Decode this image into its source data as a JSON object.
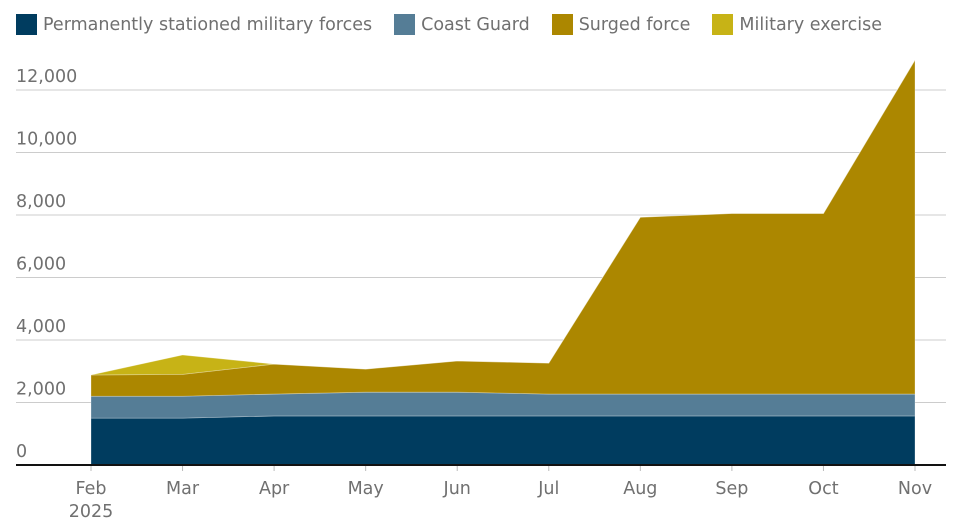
{
  "chart_data": {
    "type": "area",
    "stacked": true,
    "title": "",
    "xlabel": "",
    "ylabel": "",
    "categories": [
      "Feb",
      "Mar",
      "Apr",
      "May",
      "Jun",
      "Jul",
      "Aug",
      "Sep",
      "Oct",
      "Nov"
    ],
    "x_tick_labels": [
      [
        "Feb",
        "2025"
      ],
      [
        "Mar"
      ],
      [
        "Apr"
      ],
      [
        "May"
      ],
      [
        "Jun"
      ],
      [
        "Jul"
      ],
      [
        "Aug"
      ],
      [
        "Sep"
      ],
      [
        "Oct"
      ],
      [
        "Nov"
      ]
    ],
    "ylim": [
      0,
      12000
    ],
    "y_ticks": [
      0,
      2000,
      4000,
      6000,
      8000,
      10000,
      12000
    ],
    "y_tick_labels": [
      "0",
      "2,000",
      "4,000",
      "6,000",
      "8,000",
      "10,000",
      "12,000"
    ],
    "grid": true,
    "legend_position": "top-left",
    "series": [
      {
        "name": "Permanently stationed military forces",
        "color": "#003c5f",
        "values": [
          1500,
          1500,
          1570,
          1570,
          1570,
          1570,
          1570,
          1570,
          1570,
          1570
        ]
      },
      {
        "name": "Coast Guard",
        "color": "#557d96",
        "values": [
          700,
          700,
          700,
          760,
          760,
          700,
          700,
          700,
          700,
          700
        ]
      },
      {
        "name": "Surged force",
        "color": "#ac8700",
        "values": [
          680,
          700,
          960,
          740,
          1000,
          990,
          5660,
          5780,
          5780,
          10690
        ]
      },
      {
        "name": "Military exercise",
        "color": "#c7b316",
        "values": [
          0,
          620,
          0,
          0,
          0,
          0,
          0,
          0,
          0,
          0
        ]
      }
    ]
  }
}
